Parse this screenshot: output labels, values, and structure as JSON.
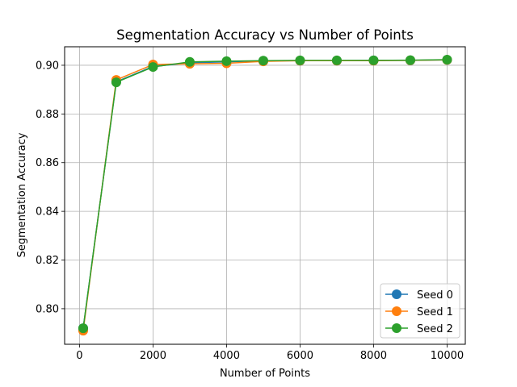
{
  "chart_data": {
    "type": "line",
    "title": "Segmentation Accuracy vs Number of Points",
    "xlabel": "Number of Points",
    "ylabel": "Segmentation Accuracy",
    "x": [
      100,
      1000,
      2000,
      3000,
      4000,
      5000,
      6000,
      7000,
      8000,
      9000,
      10000
    ],
    "series": [
      {
        "name": "Seed 0",
        "color": "#1f77b4",
        "values": [
          0.792,
          0.8932,
          0.8995,
          0.901,
          0.9014,
          0.9018,
          0.9019,
          0.9019,
          0.902,
          0.902,
          0.9022
        ]
      },
      {
        "name": "Seed 1",
        "color": "#ff7f0e",
        "values": [
          0.791,
          0.894,
          0.9003,
          0.9006,
          0.9008,
          0.9016,
          0.9019,
          0.9019,
          0.9019,
          0.902,
          0.9022
        ]
      },
      {
        "name": "Seed 2",
        "color": "#2ca02c",
        "values": [
          0.792,
          0.893,
          0.8993,
          0.9014,
          0.9017,
          0.9019,
          0.902,
          0.902,
          0.902,
          0.9021,
          0.9023
        ]
      }
    ],
    "xlim": [
      -405,
      10495
    ],
    "ylim": [
      0.7854,
      0.9076
    ],
    "xticks": [
      0,
      2000,
      4000,
      6000,
      8000,
      10000
    ],
    "xtick_labels": [
      "0",
      "2000",
      "4000",
      "6000",
      "8000",
      "10000"
    ],
    "yticks": [
      0.8,
      0.82,
      0.84,
      0.86,
      0.88,
      0.9
    ],
    "ytick_labels": [
      "0.80",
      "0.82",
      "0.84",
      "0.86",
      "0.88",
      "0.90"
    ],
    "grid": true,
    "legend_position": "lower right",
    "marker": "circle"
  }
}
